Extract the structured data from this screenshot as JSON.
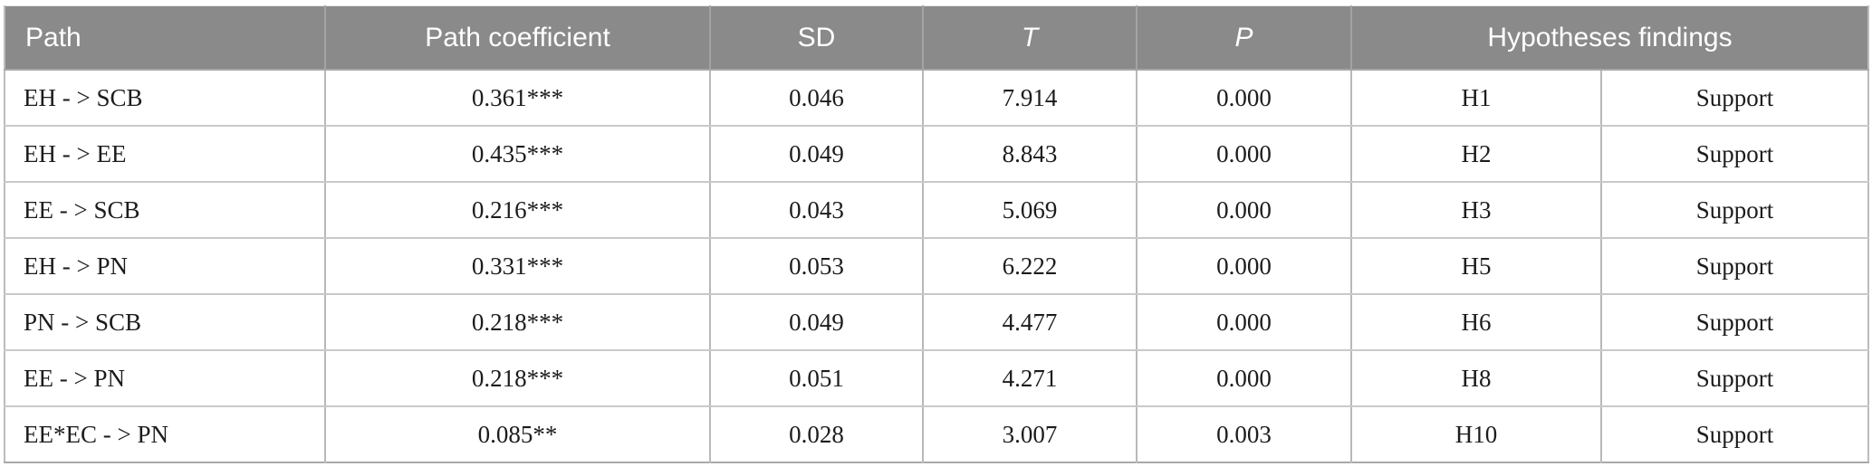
{
  "table": {
    "title_semantic": "path-analysis-results-table",
    "headers": {
      "path": "Path",
      "path_coefficient": "Path coefficient",
      "sd": "SD",
      "t": "T",
      "p": "P",
      "hypotheses_findings": "Hypotheses findings"
    },
    "rows": [
      {
        "path": "EH - > SCB",
        "coefficient": "0.361***",
        "sd": "0.046",
        "t": "7.914",
        "p": "0.000",
        "hypothesis": "H1",
        "finding": "Support"
      },
      {
        "path": "EH - > EE",
        "coefficient": "0.435***",
        "sd": "0.049",
        "t": "8.843",
        "p": "0.000",
        "hypothesis": "H2",
        "finding": "Support"
      },
      {
        "path": "EE - > SCB",
        "coefficient": "0.216***",
        "sd": "0.043",
        "t": "5.069",
        "p": "0.000",
        "hypothesis": "H3",
        "finding": "Support"
      },
      {
        "path": "EH - > PN",
        "coefficient": "0.331***",
        "sd": "0.053",
        "t": "6.222",
        "p": "0.000",
        "hypothesis": "H5",
        "finding": "Support"
      },
      {
        "path": "PN - > SCB",
        "coefficient": "0.218***",
        "sd": "0.049",
        "t": "4.477",
        "p": "0.000",
        "hypothesis": "H6",
        "finding": "Support"
      },
      {
        "path": "EE - > PN",
        "coefficient": "0.218***",
        "sd": "0.051",
        "t": "4.271",
        "p": "0.000",
        "hypothesis": "H8",
        "finding": "Support"
      },
      {
        "path": "EE*EC - > PN",
        "coefficient": "0.085**",
        "sd": "0.028",
        "t": "3.007",
        "p": "0.003",
        "hypothesis": "H10",
        "finding": "Support"
      }
    ],
    "colors": {
      "header_background": "#8a8a8a",
      "header_text": "#ffffff",
      "row_separator": "#c9c9c9",
      "column_separator": "#b9b9b9",
      "body_text": "#1c1c1c"
    }
  }
}
